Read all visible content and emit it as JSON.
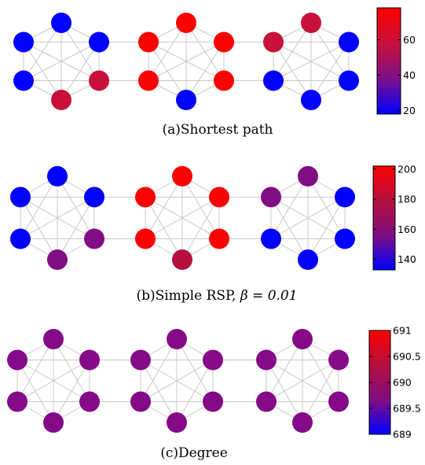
{
  "panels": [
    {
      "id": "a",
      "caption_prefix": "(a)Shortest path",
      "caption_math": "",
      "node_colors": [
        [
          "#0000ff",
          "#0000ff",
          "#0000ff",
          "#c8103a",
          "#c8103a",
          "#0000ff"
        ],
        [
          "#ff0000",
          "#ff0000",
          "#ff0000",
          "#0000ff",
          "#ff0000",
          "#ff0000"
        ],
        [
          "#c8103a",
          "#c8103a",
          "#0000ff",
          "#0000ff",
          "#0000ff",
          "#0000ff"
        ]
      ],
      "colorbar": {
        "min": 18,
        "max": 78,
        "ticks": [
          "60",
          "40",
          "20"
        ],
        "tick_values": [
          60,
          40,
          20
        ],
        "gradient": [
          "#ff0000",
          "#c8103a",
          "#7d0f8a",
          "#0000ff"
        ]
      }
    },
    {
      "id": "b",
      "caption_prefix": "(b)Simple RSP, ",
      "caption_math": "β = 0.01",
      "node_colors": [
        [
          "#0000ff",
          "#0000ff",
          "#0000ff",
          "#800d82",
          "#800d82",
          "#0000ff"
        ],
        [
          "#ff0000",
          "#ff0000",
          "#ff0000",
          "#b40f3e",
          "#ff0000",
          "#ff0000"
        ],
        [
          "#800d82",
          "#800d82",
          "#0000ff",
          "#0000ff",
          "#0000ff",
          "#0000ff"
        ]
      ],
      "colorbar": {
        "min": 133,
        "max": 202,
        "ticks": [
          "200",
          "180",
          "160",
          "140"
        ],
        "tick_values": [
          200,
          180,
          160,
          140
        ],
        "gradient": [
          "#ff0000",
          "#b40f3e",
          "#800d82",
          "#0000ff"
        ]
      }
    },
    {
      "id": "c",
      "caption_prefix": "(c)Degree",
      "caption_math": "",
      "node_colors": [
        [
          "#840a88",
          "#840a88",
          "#840a88",
          "#840a88",
          "#840a88",
          "#840a88"
        ],
        [
          "#840a88",
          "#840a88",
          "#840a88",
          "#840a88",
          "#840a88",
          "#840a88"
        ],
        [
          "#840a88",
          "#840a88",
          "#840a88",
          "#840a88",
          "#840a88",
          "#840a88"
        ]
      ],
      "colorbar": {
        "min": 689,
        "max": 691,
        "ticks": [
          "691",
          "690.5",
          "690",
          "689.5",
          "689"
        ],
        "tick_values": [
          691,
          690.5,
          690,
          689.5,
          689
        ],
        "gradient": [
          "#ff0000",
          "#b40f3e",
          "#800d82",
          "#0000ff"
        ]
      }
    }
  ]
}
